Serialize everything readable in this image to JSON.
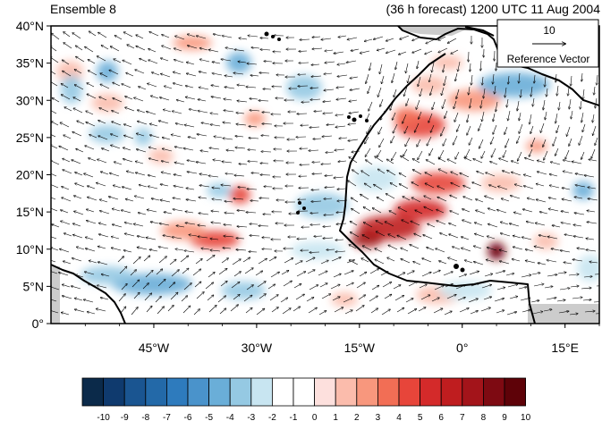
{
  "header": {
    "left_title": "Ensemble 8",
    "right_title": "(36 h forecast) 1200 UTC 11 Aug 2004"
  },
  "map": {
    "lat_labels": [
      "40°N",
      "35°N",
      "30°N",
      "25°N",
      "20°N",
      "15°N",
      "10°N",
      "5°N",
      "0°"
    ],
    "lon_labels": [
      "45°W",
      "30°W",
      "15°W",
      "0°",
      "15°E"
    ],
    "lon_range_deg": [
      -60,
      20
    ],
    "lat_range_deg": [
      0,
      40
    ]
  },
  "reference_vector": {
    "magnitude": "10",
    "label": "Reference Vector"
  },
  "colorbar": {
    "labels": [
      "-10",
      "-9",
      "-8",
      "-7",
      "-6",
      "-5",
      "-4",
      "-3",
      "-2",
      "-1",
      "0",
      "1",
      "2",
      "3",
      "4",
      "5",
      "6",
      "7",
      "8",
      "9",
      "10"
    ],
    "colors": [
      "#0b2a4a",
      "#0f3a6e",
      "#1a5591",
      "#2369a8",
      "#2e7bbd",
      "#4a93cb",
      "#6aaed8",
      "#95c9e3",
      "#c8e5f1",
      "#ffffff",
      "#ffffff",
      "#fde0dd",
      "#fbbcac",
      "#f8977d",
      "#f26e55",
      "#e7453a",
      "#d42a2a",
      "#bf1d1f",
      "#a3141a",
      "#7e0a12",
      "#5e0208"
    ]
  },
  "colors": {
    "warm_shading": "#f26e55",
    "cool_shading": "#4a93cb",
    "land_missing": "#cccccc",
    "coastline": "#000000"
  }
}
